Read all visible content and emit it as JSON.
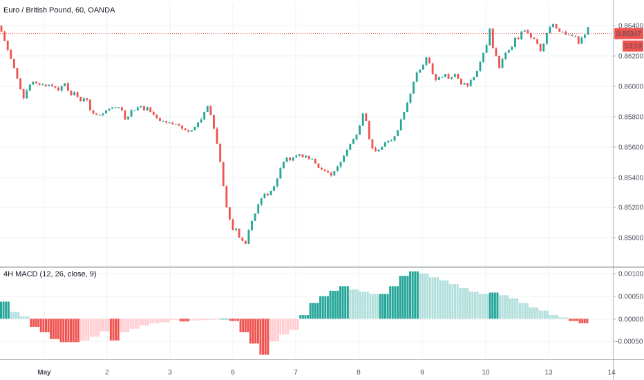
{
  "header": {
    "symbol_title": "Euro / British Pound, 60, OANDA"
  },
  "price_label": {
    "value": "0.86347",
    "countdown": "53:19",
    "color": "#ef5350"
  },
  "indicator": {
    "title": "4H MACD (12, 26, close, 9)"
  },
  "colors": {
    "up": "#26a69a",
    "down": "#ef5350",
    "hist_up_strong": "#26a69a",
    "hist_up_weak": "#b2dfdb",
    "hist_down_strong": "#ef5350",
    "hist_down_weak": "#ffcdd2",
    "grid": "#eef0f3"
  },
  "chart_data": [
    {
      "type": "candlestick",
      "title": "Euro / British Pound, 60, OANDA",
      "x_labels": [
        "May",
        "2",
        "3",
        "6",
        "7",
        "8",
        "9",
        "10",
        "13",
        "14"
      ],
      "y_ticks": [
        "0.86400",
        "0.86200",
        "0.86000",
        "0.85800",
        "0.85600",
        "0.85400",
        "0.85200",
        "0.85000"
      ],
      "ylim": [
        0.8492,
        0.8656
      ],
      "current_price": 0.86347,
      "path": [
        0.864,
        0.8636,
        0.863,
        0.8624,
        0.8618,
        0.8612,
        0.8605,
        0.8598,
        0.8592,
        0.8597,
        0.8601,
        0.8603,
        0.8602,
        0.8601,
        0.8601,
        0.86,
        0.8601,
        0.86,
        0.8599,
        0.8597,
        0.86,
        0.8602,
        0.8597,
        0.8594,
        0.8596,
        0.8593,
        0.859,
        0.8592,
        0.8591,
        0.8584,
        0.8582,
        0.8581,
        0.8581,
        0.8582,
        0.8584,
        0.8585,
        0.8586,
        0.8586,
        0.8586,
        0.8584,
        0.8578,
        0.858,
        0.8584,
        0.8584,
        0.8586,
        0.8587,
        0.8584,
        0.8586,
        0.8583,
        0.8581,
        0.8579,
        0.8577,
        0.8577,
        0.8576,
        0.8576,
        0.8575,
        0.8575,
        0.8574,
        0.8572,
        0.8571,
        0.857,
        0.8571,
        0.8573,
        0.8576,
        0.8578,
        0.8583,
        0.8587,
        0.8581,
        0.8572,
        0.8562,
        0.855,
        0.8534,
        0.852,
        0.8512,
        0.8505,
        0.8506,
        0.85,
        0.8498,
        0.8496,
        0.8505,
        0.8511,
        0.8516,
        0.8522,
        0.8526,
        0.8529,
        0.8528,
        0.8531,
        0.8534,
        0.8539,
        0.8546,
        0.855,
        0.8553,
        0.8551,
        0.8553,
        0.8554,
        0.8555,
        0.8553,
        0.8554,
        0.8552,
        0.8552,
        0.8549,
        0.8546,
        0.8545,
        0.8544,
        0.8543,
        0.8541,
        0.8544,
        0.8547,
        0.855,
        0.8554,
        0.8558,
        0.8562,
        0.8565,
        0.8568,
        0.8574,
        0.8582,
        0.8577,
        0.8565,
        0.8559,
        0.8557,
        0.8558,
        0.856,
        0.8563,
        0.8564,
        0.8564,
        0.8567,
        0.8571,
        0.8578,
        0.8583,
        0.8589,
        0.8595,
        0.8603,
        0.8609,
        0.8611,
        0.8614,
        0.8619,
        0.8615,
        0.8608,
        0.8604,
        0.8606,
        0.8606,
        0.8608,
        0.8605,
        0.8606,
        0.8608,
        0.8605,
        0.8601,
        0.8602,
        0.86,
        0.8604,
        0.8606,
        0.861,
        0.8616,
        0.8622,
        0.8627,
        0.8638,
        0.8625,
        0.862,
        0.8612,
        0.8618,
        0.8622,
        0.8624,
        0.8626,
        0.8632,
        0.8631,
        0.8636,
        0.8637,
        0.8635,
        0.8632,
        0.8631,
        0.8628,
        0.8623,
        0.8628,
        0.8635,
        0.8639,
        0.8641,
        0.8638,
        0.8636,
        0.8636,
        0.8634,
        0.8634,
        0.8633,
        0.8633,
        0.8628,
        0.8632,
        0.8634,
        0.8639
      ]
    },
    {
      "type": "bar",
      "title": "4H MACD (12, 26, close, 9)",
      "y_ticks": [
        "0.00100",
        "0.00050",
        "0.00000",
        "-0.00050"
      ],
      "ylim": [
        -0.00085,
        0.00118
      ],
      "bucket_size": 4,
      "values": [
        0.00038,
        0.00015,
        5e-05,
        -0.00018,
        -0.0003,
        -0.00045,
        -0.00052,
        -0.00052,
        -0.00048,
        -0.0004,
        -0.00028,
        -0.00048,
        -0.0003,
        -0.00022,
        -0.00015,
        -0.0001,
        -8e-05,
        -3e-05,
        -6e-05,
        -4e-05,
        -3e-05,
        -2e-05,
        0.0,
        -5e-05,
        -0.0003,
        -0.00055,
        -0.0008,
        -0.0005,
        -0.00035,
        -0.00025,
        8e-05,
        0.00035,
        0.0005,
        0.00062,
        0.00072,
        0.00065,
        0.0006,
        0.00055,
        0.00055,
        0.00072,
        0.00095,
        0.00105,
        0.001,
        0.00092,
        0.00085,
        0.00077,
        0.00068,
        0.0006,
        0.00055,
        0.00058,
        0.00052,
        0.00045,
        0.00035,
        0.00025,
        0.00018,
        8e-05,
        3e-05,
        -5e-05,
        -0.0001
      ]
    }
  ]
}
